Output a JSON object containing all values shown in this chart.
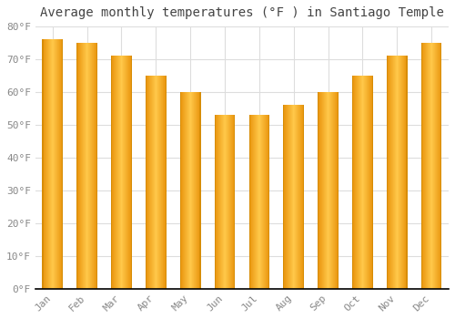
{
  "title": "Average monthly temperatures (°F ) in Santiago Temple",
  "months": [
    "Jan",
    "Feb",
    "Mar",
    "Apr",
    "May",
    "Jun",
    "Jul",
    "Aug",
    "Sep",
    "Oct",
    "Nov",
    "Dec"
  ],
  "values": [
    76,
    75,
    71,
    65,
    60,
    53,
    53,
    56,
    60,
    65,
    71,
    75
  ],
  "bar_color_left": "#F5A623",
  "bar_color_center": "#FFC84A",
  "bar_color_right": "#E8920A",
  "ylim": [
    0,
    80
  ],
  "yticks": [
    0,
    10,
    20,
    30,
    40,
    50,
    60,
    70,
    80
  ],
  "ytick_labels": [
    "0°F",
    "10°F",
    "20°F",
    "30°F",
    "40°F",
    "50°F",
    "60°F",
    "70°F",
    "80°F"
  ],
  "background_color": "#FFFFFF",
  "fig_background_color": "#FFFFFF",
  "grid_color": "#DDDDDD",
  "title_fontsize": 10,
  "tick_fontsize": 8,
  "tick_color": "#888888",
  "title_color": "#444444",
  "bar_width": 0.6,
  "bar_edge_color": "#CC8800"
}
